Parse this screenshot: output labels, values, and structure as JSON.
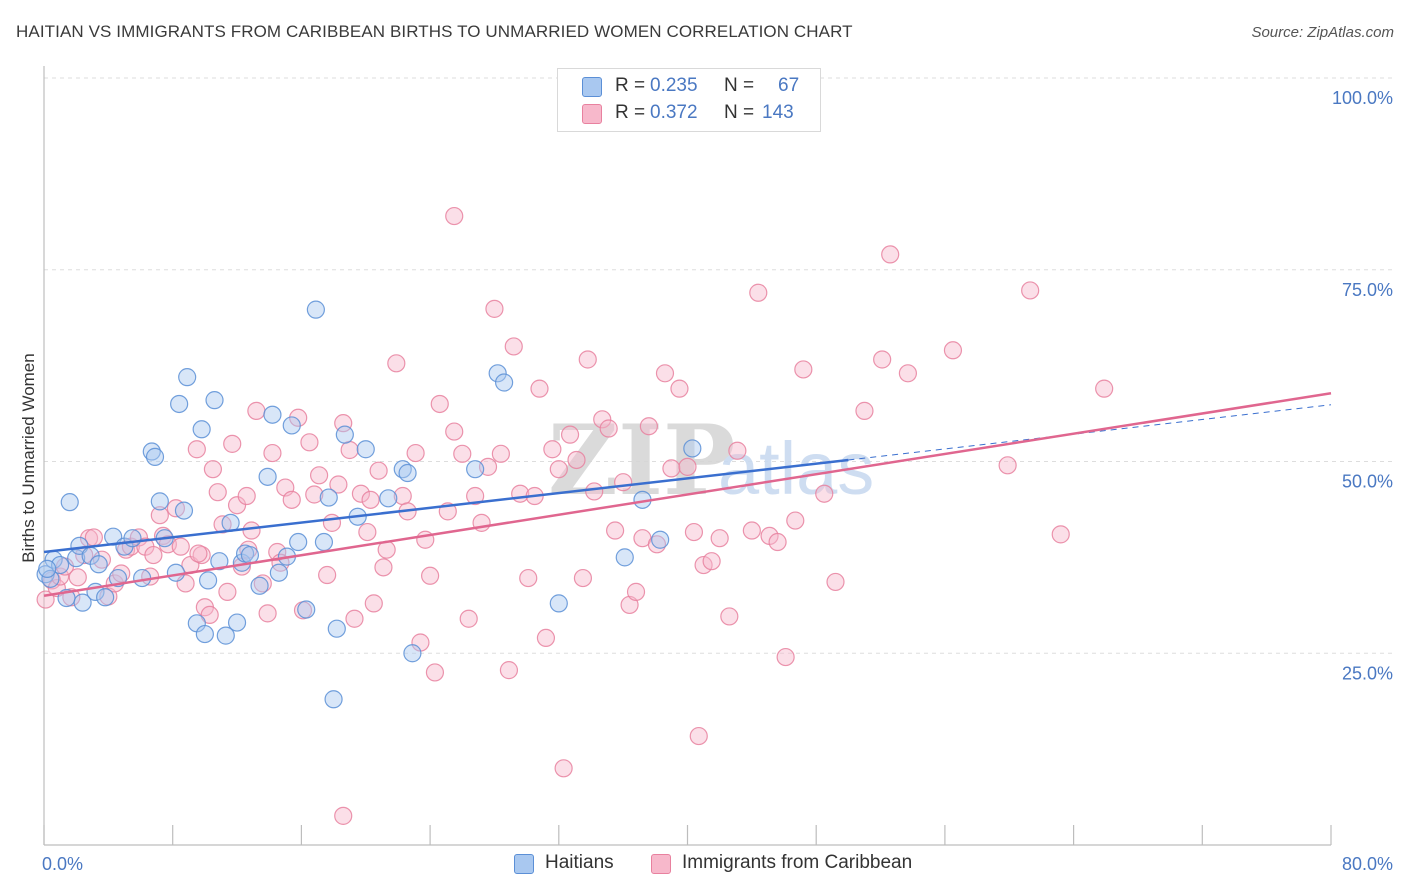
{
  "title": "HAITIAN VS IMMIGRANTS FROM CARIBBEAN BIRTHS TO UNMARRIED WOMEN CORRELATION CHART",
  "source": "Source: ZipAtlas.com",
  "watermark": {
    "zip": "ZIP",
    "atlas": "atlas"
  },
  "legend": {
    "r_label": "R =",
    "n_label": "N =",
    "rows": [
      {
        "r": "0.235",
        "n": "67"
      },
      {
        "r": "0.372",
        "n": "143"
      }
    ]
  },
  "colors": {
    "haitians_fill": "#a9c8f0",
    "haitians_stroke": "#5b8fd6",
    "haitians_line": "#3a6fcf",
    "carib_fill": "#f7b8cb",
    "carib_stroke": "#e8819f",
    "carib_line": "#e0668f",
    "tick_text": "#4a78c2",
    "grid": "#dddddd"
  },
  "chart_data": {
    "type": "scatter",
    "title": "HAITIAN VS IMMIGRANTS FROM CARIBBEAN BIRTHS TO UNMARRIED WOMEN CORRELATION CHART",
    "xlabel": "",
    "ylabel": "Births to Unmarried Women",
    "xlim": [
      0,
      80
    ],
    "ylim": [
      0,
      100
    ],
    "x_ticks": [
      0,
      8,
      16,
      24,
      32,
      40,
      48,
      56,
      64,
      72,
      80
    ],
    "x_tick_labels": [
      {
        "value": 0,
        "label": "0.0%"
      },
      {
        "value": 80,
        "label": "80.0%"
      }
    ],
    "y_tick_labels": [
      {
        "value": 25,
        "label": "25.0%"
      },
      {
        "value": 50,
        "label": "50.0%"
      },
      {
        "value": 75,
        "label": "75.0%"
      },
      {
        "value": 100,
        "label": "100.0%"
      }
    ],
    "grid": true,
    "series": [
      {
        "name": "Haitians",
        "r": 0.235,
        "n": 67,
        "trend": {
          "x": [
            0,
            50
          ],
          "y": [
            38.2,
            50.2
          ]
        },
        "points": [
          [
            0.1,
            35.3
          ],
          [
            0.4,
            34.7
          ],
          [
            0.6,
            37.2
          ],
          [
            1,
            36.5
          ],
          [
            1.4,
            32.2
          ],
          [
            1.6,
            44.7
          ],
          [
            2,
            37.4
          ],
          [
            2.2,
            39.0
          ],
          [
            2.4,
            31.6
          ],
          [
            2.9,
            37.7
          ],
          [
            3.2,
            33.0
          ],
          [
            3.4,
            36.6
          ],
          [
            3.8,
            32.3
          ],
          [
            4.3,
            40.2
          ],
          [
            4.6,
            34.8
          ],
          [
            5.0,
            38.9
          ],
          [
            5.5,
            40.0
          ],
          [
            6.1,
            34.8
          ],
          [
            6.7,
            51.3
          ],
          [
            6.9,
            50.6
          ],
          [
            7.2,
            44.8
          ],
          [
            7.5,
            40.0
          ],
          [
            8.2,
            35.5
          ],
          [
            8.4,
            57.5
          ],
          [
            8.7,
            43.6
          ],
          [
            8.9,
            61.0
          ],
          [
            9.5,
            28.9
          ],
          [
            9.8,
            54.2
          ],
          [
            10.0,
            27.5
          ],
          [
            10.2,
            34.5
          ],
          [
            10.6,
            58.0
          ],
          [
            10.9,
            37.0
          ],
          [
            11.3,
            27.3
          ],
          [
            11.6,
            42.0
          ],
          [
            12.0,
            29.0
          ],
          [
            12.3,
            36.8
          ],
          [
            12.5,
            38.0
          ],
          [
            12.8,
            37.8
          ],
          [
            13.4,
            33.8
          ],
          [
            13.9,
            48.0
          ],
          [
            14.2,
            56.1
          ],
          [
            14.6,
            35.5
          ],
          [
            15.1,
            37.6
          ],
          [
            15.4,
            54.7
          ],
          [
            15.8,
            39.5
          ],
          [
            16.3,
            30.7
          ],
          [
            16.9,
            69.8
          ],
          [
            17.4,
            39.5
          ],
          [
            17.7,
            45.3
          ],
          [
            18.0,
            19.0
          ],
          [
            18.2,
            28.2
          ],
          [
            18.7,
            53.5
          ],
          [
            19.5,
            42.8
          ],
          [
            20.0,
            51.6
          ],
          [
            21.4,
            45.2
          ],
          [
            22.3,
            49.0
          ],
          [
            22.6,
            48.5
          ],
          [
            22.9,
            25.0
          ],
          [
            26.8,
            49.0
          ],
          [
            28.2,
            61.5
          ],
          [
            28.6,
            60.3
          ],
          [
            32.0,
            31.5
          ],
          [
            36.1,
            37.5
          ],
          [
            37.2,
            45.0
          ],
          [
            38.3,
            39.8
          ],
          [
            40.3,
            51.7
          ],
          [
            0.2,
            36.0
          ]
        ]
      },
      {
        "name": "Immigrants from Caribbean",
        "r": 0.372,
        "n": 143,
        "trend": {
          "x": [
            0,
            80
          ],
          "y": [
            32.5,
            58.9
          ]
        },
        "points": [
          [
            0.1,
            32.0
          ],
          [
            0.5,
            34.5
          ],
          [
            0.8,
            33.5
          ],
          [
            1.0,
            35.0
          ],
          [
            1.3,
            36.3
          ],
          [
            1.7,
            32.3
          ],
          [
            2.1,
            34.9
          ],
          [
            2.5,
            37.8
          ],
          [
            2.8,
            40.0
          ],
          [
            3.1,
            40.1
          ],
          [
            3.6,
            37.2
          ],
          [
            4.0,
            32.4
          ],
          [
            4.4,
            34.1
          ],
          [
            4.8,
            35.4
          ],
          [
            5.1,
            38.5
          ],
          [
            5.4,
            38.9
          ],
          [
            5.9,
            40.1
          ],
          [
            6.3,
            38.9
          ],
          [
            6.6,
            35.0
          ],
          [
            6.8,
            37.8
          ],
          [
            7.2,
            43.0
          ],
          [
            7.4,
            40.3
          ],
          [
            7.7,
            39.2
          ],
          [
            8.2,
            43.9
          ],
          [
            8.5,
            38.9
          ],
          [
            8.8,
            34.1
          ],
          [
            9.1,
            36.5
          ],
          [
            9.5,
            51.6
          ],
          [
            9.8,
            37.8
          ],
          [
            10.0,
            31.0
          ],
          [
            10.3,
            30.0
          ],
          [
            10.5,
            49.0
          ],
          [
            10.8,
            46.0
          ],
          [
            11.1,
            41.8
          ],
          [
            11.4,
            33.0
          ],
          [
            11.7,
            52.3
          ],
          [
            12.0,
            44.3
          ],
          [
            12.3,
            36.3
          ],
          [
            12.6,
            45.5
          ],
          [
            12.9,
            41.0
          ],
          [
            13.2,
            56.6
          ],
          [
            13.6,
            34.1
          ],
          [
            13.9,
            30.2
          ],
          [
            14.2,
            51.1
          ],
          [
            14.5,
            38.2
          ],
          [
            14.7,
            36.8
          ],
          [
            15.0,
            46.6
          ],
          [
            15.4,
            45.0
          ],
          [
            15.8,
            55.7
          ],
          [
            16.1,
            30.6
          ],
          [
            16.5,
            52.5
          ],
          [
            16.8,
            45.7
          ],
          [
            17.1,
            48.2
          ],
          [
            17.6,
            35.2
          ],
          [
            17.9,
            42.0
          ],
          [
            18.3,
            47.0
          ],
          [
            18.6,
            55.0
          ],
          [
            19.0,
            51.5
          ],
          [
            19.3,
            29.5
          ],
          [
            19.7,
            45.8
          ],
          [
            20.1,
            40.8
          ],
          [
            20.5,
            31.5
          ],
          [
            20.8,
            48.8
          ],
          [
            21.1,
            36.2
          ],
          [
            21.3,
            38.5
          ],
          [
            21.9,
            62.8
          ],
          [
            22.3,
            45.5
          ],
          [
            22.6,
            43.5
          ],
          [
            23.1,
            51.1
          ],
          [
            23.4,
            26.4
          ],
          [
            23.7,
            39.8
          ],
          [
            24.0,
            35.1
          ],
          [
            24.3,
            22.5
          ],
          [
            24.6,
            57.5
          ],
          [
            25.1,
            43.5
          ],
          [
            25.5,
            53.9
          ],
          [
            26.0,
            51.0
          ],
          [
            26.4,
            29.5
          ],
          [
            26.8,
            45.5
          ],
          [
            27.2,
            42.0
          ],
          [
            27.6,
            49.3
          ],
          [
            28.0,
            69.9
          ],
          [
            28.4,
            51.0
          ],
          [
            28.9,
            22.8
          ],
          [
            29.2,
            65.0
          ],
          [
            29.6,
            45.8
          ],
          [
            30.1,
            34.8
          ],
          [
            30.5,
            45.5
          ],
          [
            30.8,
            59.5
          ],
          [
            31.2,
            27.0
          ],
          [
            31.6,
            51.6
          ],
          [
            32.0,
            49.0
          ],
          [
            32.3,
            10.0
          ],
          [
            32.7,
            53.5
          ],
          [
            33.1,
            50.2
          ],
          [
            33.5,
            34.8
          ],
          [
            33.8,
            63.3
          ],
          [
            34.2,
            46.1
          ],
          [
            34.7,
            55.5
          ],
          [
            35.1,
            54.3
          ],
          [
            35.5,
            41.0
          ],
          [
            36.0,
            47.3
          ],
          [
            36.4,
            31.3
          ],
          [
            36.8,
            33.0
          ],
          [
            37.2,
            40.0
          ],
          [
            37.6,
            54.6
          ],
          [
            38.1,
            39.2
          ],
          [
            38.6,
            61.5
          ],
          [
            39.0,
            49.1
          ],
          [
            39.5,
            59.5
          ],
          [
            40.0,
            49.3
          ],
          [
            40.4,
            40.8
          ],
          [
            40.7,
            14.2
          ],
          [
            41.0,
            36.5
          ],
          [
            41.5,
            37.0
          ],
          [
            42.0,
            40.0
          ],
          [
            42.6,
            29.8
          ],
          [
            43.1,
            51.4
          ],
          [
            44.0,
            41.0
          ],
          [
            44.4,
            72.0
          ],
          [
            45.1,
            40.3
          ],
          [
            45.6,
            39.5
          ],
          [
            46.1,
            24.5
          ],
          [
            46.7,
            42.3
          ],
          [
            47.2,
            62.0
          ],
          [
            48.5,
            45.8
          ],
          [
            49.2,
            34.3
          ],
          [
            51.0,
            56.6
          ],
          [
            52.1,
            63.3
          ],
          [
            52.6,
            77.0
          ],
          [
            53.7,
            61.5
          ],
          [
            56.5,
            64.5
          ],
          [
            59.9,
            49.5
          ],
          [
            61.3,
            72.3
          ],
          [
            63.2,
            40.5
          ],
          [
            65.9,
            59.5
          ],
          [
            25.5,
            82.0
          ],
          [
            18.6,
            3.8
          ],
          [
            12.7,
            38.5
          ],
          [
            20.3,
            45.0
          ],
          [
            9.6,
            38.0
          ]
        ]
      }
    ]
  },
  "bottom_legend": [
    {
      "label": "Haitians"
    },
    {
      "label": "Immigrants from Caribbean"
    }
  ]
}
